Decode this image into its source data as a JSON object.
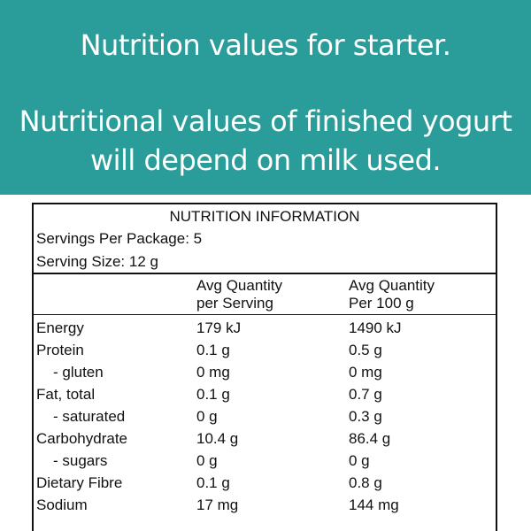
{
  "banner": {
    "line1": "Nutrition values for starter.",
    "line2": "Nutritional values of finished yogurt",
    "line3": "will depend on milk used."
  },
  "panel": {
    "title": "NUTRITION INFORMATION",
    "servings": "Servings Per Package: 5",
    "serving_size": "Serving Size: 12 g",
    "col1_line1": "Avg Quantity",
    "col1_line2": "per Serving",
    "col2_line1": "Avg Quantity",
    "col2_line2": "Per 100 g",
    "rows": [
      {
        "name": "Energy",
        "per_serving": "179 kJ",
        "per_100g": "1490 kJ"
      },
      {
        "name": "Protein",
        "per_serving": "0.1 g",
        "per_100g": "0.5 g"
      },
      {
        "name": "- gluten",
        "per_serving": "0 mg",
        "per_100g": "0 mg"
      },
      {
        "name": "Fat, total",
        "per_serving": "0.1 g",
        "per_100g": "0.7 g"
      },
      {
        "name": "- saturated",
        "per_serving": "0 g",
        "per_100g": "0.3 g"
      },
      {
        "name": "Carbohydrate",
        "per_serving": "10.4 g",
        "per_100g": "86.4 g"
      },
      {
        "name": "- sugars",
        "per_serving": "0 g",
        "per_100g": "0 g"
      },
      {
        "name": "Dietary Fibre",
        "per_serving": "0.1 g",
        "per_100g": "0.8 g"
      },
      {
        "name": "Sodium",
        "per_serving": "17 mg",
        "per_100g": "144 mg"
      }
    ]
  }
}
